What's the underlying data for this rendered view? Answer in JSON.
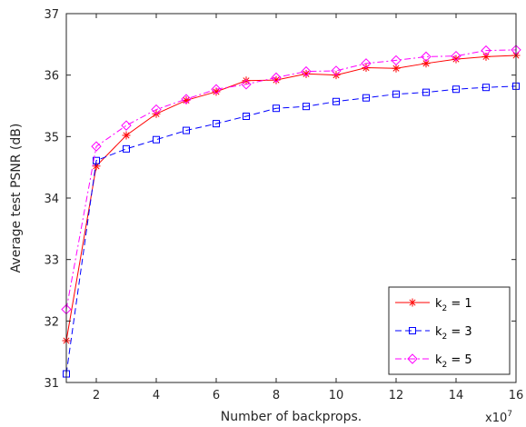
{
  "chart_data": {
    "type": "line",
    "title": "",
    "xlabel": "Number of backprops.",
    "ylabel": "Average test PSNR (dB)",
    "x_multiplier_label": "x10",
    "x_multiplier_exponent": "7",
    "xlim": [
      1,
      16
    ],
    "ylim": [
      31,
      37
    ],
    "xticks": [
      2,
      4,
      6,
      8,
      10,
      12,
      14,
      16
    ],
    "yticks": [
      31,
      32,
      33,
      34,
      35,
      36,
      37
    ],
    "grid": false,
    "legend_position": "bottom-right",
    "x": [
      1,
      2,
      3,
      4,
      5,
      6,
      7,
      8,
      9,
      10,
      11,
      12,
      13,
      14,
      15,
      16
    ],
    "series": [
      {
        "legend_label": "k2 = 1",
        "legend_base": "k",
        "legend_sub": "2",
        "legend_rest": " = 1",
        "color": "#ff0000",
        "line_color": "#ff0000",
        "marker_color": "#ff0000",
        "dash": "solid",
        "marker": "asterisk",
        "values": [
          31.68,
          34.52,
          35.02,
          35.37,
          35.59,
          35.73,
          35.91,
          35.92,
          36.02,
          36.0,
          36.12,
          36.11,
          36.19,
          36.26,
          36.3,
          36.32
        ]
      },
      {
        "legend_label": "k2 = 3",
        "legend_base": "k",
        "legend_sub": "2",
        "legend_rest": " = 3",
        "color": "#0000ff",
        "line_color": "#0000ff",
        "marker_color": "#0000ff",
        "dash": "dashed",
        "marker": "square",
        "values": [
          31.14,
          34.61,
          34.8,
          34.95,
          35.1,
          35.21,
          35.33,
          35.46,
          35.49,
          35.57,
          35.63,
          35.69,
          35.72,
          35.77,
          35.8,
          35.82
        ]
      },
      {
        "legend_label": "k2 = 5",
        "legend_base": "k",
        "legend_sub": "2",
        "legend_rest": " = 5",
        "color": "#ff00ff",
        "line_color": "#ff00ff",
        "marker_color": "#ff00ff",
        "dash": "dashdot",
        "marker": "diamond",
        "values": [
          32.19,
          34.84,
          35.18,
          35.44,
          35.61,
          35.77,
          35.85,
          35.96,
          36.06,
          36.07,
          36.19,
          36.24,
          36.3,
          36.31,
          36.4,
          36.41
        ]
      }
    ]
  }
}
